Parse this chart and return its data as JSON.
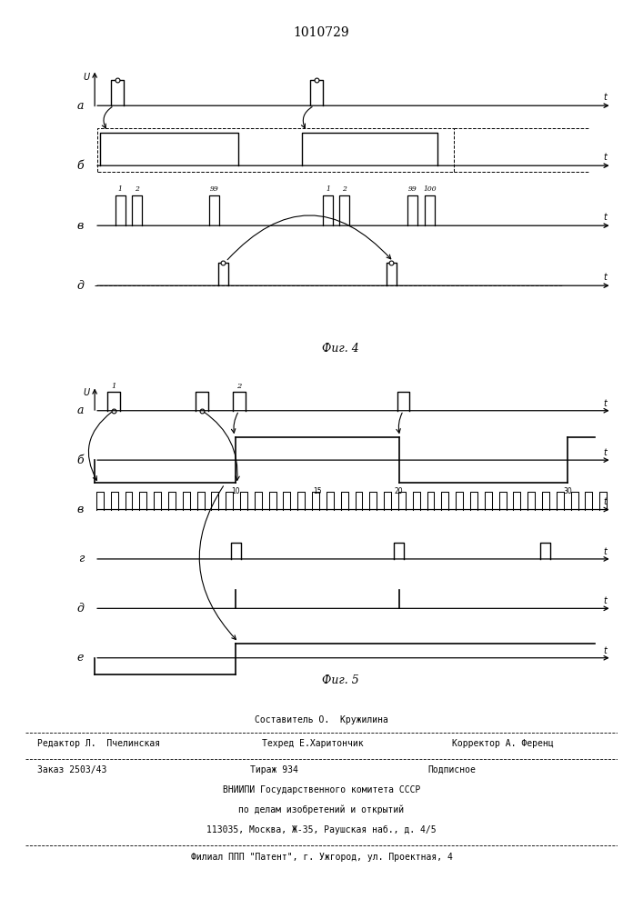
{
  "title": "1010729",
  "fig4_label": "Фиг. 4",
  "fig5_label": "Фиг. 5",
  "row_labels_fig4": [
    "а",
    "б",
    "в",
    "д"
  ],
  "row_labels_fig5": [
    "а",
    "б",
    "в",
    "г",
    "д",
    "е"
  ],
  "footer": {
    "line1_left": "Редактор Л.  Пчелинская",
    "line1_mid": "Составитель О.  Кружилина",
    "line1_mid2": "Техред Е.Харитончик",
    "line1_right": "Корректор А. Ференц",
    "line2_left": "Заказ 2503/43",
    "line2_mid": "Тираж 934",
    "line2_right": "Подписное",
    "line3": "ВНИИПИ Государственного комитета СССР",
    "line4": "по делам изобретений и открытий",
    "line5": "113035, Москва, Ж-35, Раушская наб., д. 4/5",
    "line6": "Филиал ППП \"Патент\", г. Ужгород, ул. Проектная, 4"
  },
  "line_color": "#000000"
}
